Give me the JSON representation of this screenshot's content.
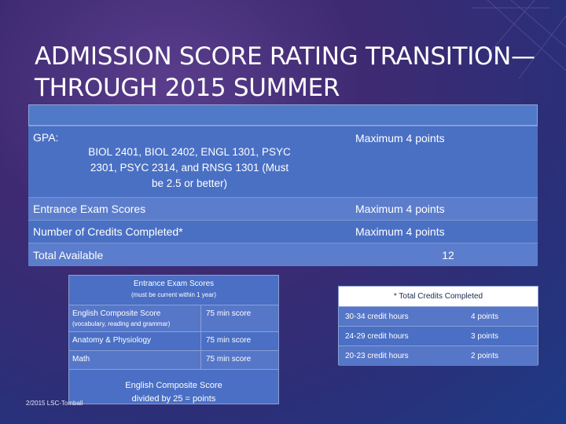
{
  "title": {
    "line1": "ADMISSION SCORE RATING TRANSITION—",
    "line2": "THROUGH 2015 SUMMER"
  },
  "main_table": {
    "gpa": {
      "label": "GPA:",
      "detail_line1": "BIOL 2401, BIOL 2402, ENGL 1301, PSYC",
      "detail_line2": "2301,  PSYC 2314,  and RNSG 1301   (Must",
      "detail_line3": "be 2.5 or better)",
      "points": "Maximum 4 points"
    },
    "exam": {
      "label": "Entrance Exam Scores",
      "points": "Maximum 4 points"
    },
    "credits": {
      "label": "Number of Credits Completed*",
      "points": "Maximum 4 points"
    },
    "total": {
      "label": "Total Available",
      "points": "12"
    }
  },
  "exam_table": {
    "title": "Entrance Exam Scores",
    "subtitle": "(must be current within 1 year)",
    "rows": [
      {
        "name": "English Composite Score",
        "sub": "(vocabulary, reading and grammar)",
        "score": "75 min score"
      },
      {
        "name": "Anatomy & Physiology",
        "score": "75 min score"
      },
      {
        "name": "Math",
        "score": "75 min score"
      }
    ],
    "note_line1": "English Composite Score",
    "note_line2": "divided by 25 = points"
  },
  "credits_table": {
    "title": "* Total Credits Completed",
    "rows": [
      {
        "range": "30-34 credit hours",
        "points": "4 points"
      },
      {
        "range": "24-29  credit hours",
        "points": "3 points"
      },
      {
        "range": "20-23 credit hours",
        "points": "2 points"
      }
    ]
  },
  "footer": "2/2015   LSC-Tomball"
}
